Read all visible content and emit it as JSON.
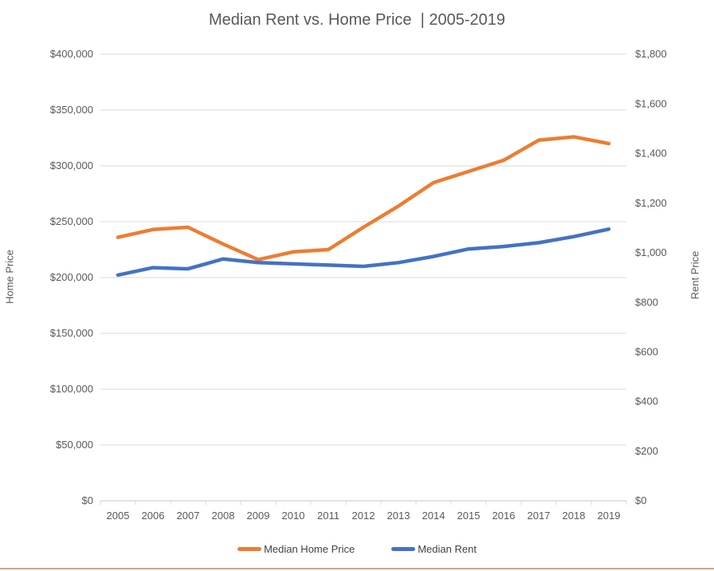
{
  "page": {
    "background": "#ffffff",
    "bottom_border_color": "#e0a179"
  },
  "chart_data": {
    "type": "line",
    "title": "Median Rent vs. Home Price  | 2005-2019",
    "categories": [
      "2005",
      "2006",
      "2007",
      "2008",
      "2009",
      "2010",
      "2011",
      "2012",
      "2013",
      "2014",
      "2015",
      "2016",
      "2017",
      "2018",
      "2019"
    ],
    "series": [
      {
        "name": "Median Home Price",
        "axis": "left",
        "color": "#ED7D31",
        "values": [
          236000,
          243000,
          245000,
          230000,
          216000,
          223000,
          225000,
          245000,
          264000,
          285000,
          295000,
          305000,
          323000,
          326000,
          320000
        ]
      },
      {
        "name": "Median Rent",
        "axis": "right",
        "color": "#4472C4",
        "values": [
          910,
          940,
          935,
          975,
          960,
          955,
          950,
          945,
          960,
          985,
          1015,
          1025,
          1040,
          1065,
          1095
        ]
      }
    ],
    "left_axis": {
      "title": "Home Price",
      "min": 0,
      "max": 400000,
      "step": 50000,
      "tick_labels": [
        "$0",
        "$50,000",
        "$100,000",
        "$150,000",
        "$200,000",
        "$250,000",
        "$300,000",
        "$350,000",
        "$400,000"
      ]
    },
    "right_axis": {
      "title": "Rent Price",
      "min": 0,
      "max": 1800,
      "step": 200,
      "tick_labels": [
        "$0",
        "$200",
        "$400",
        "$600",
        "$800",
        "$1,000",
        "$1,200",
        "$1,400",
        "$1,600",
        "$1,800"
      ]
    },
    "legend": {
      "position": "bottom",
      "entries": [
        "Median Home Price",
        "Median Rent"
      ]
    },
    "grid": true,
    "colors": {
      "grid": "#d9d9d9",
      "axis_line": "#c6c6c6",
      "tick": "#d9d9d9",
      "text": "#595959",
      "legend_text": "#404040"
    }
  }
}
